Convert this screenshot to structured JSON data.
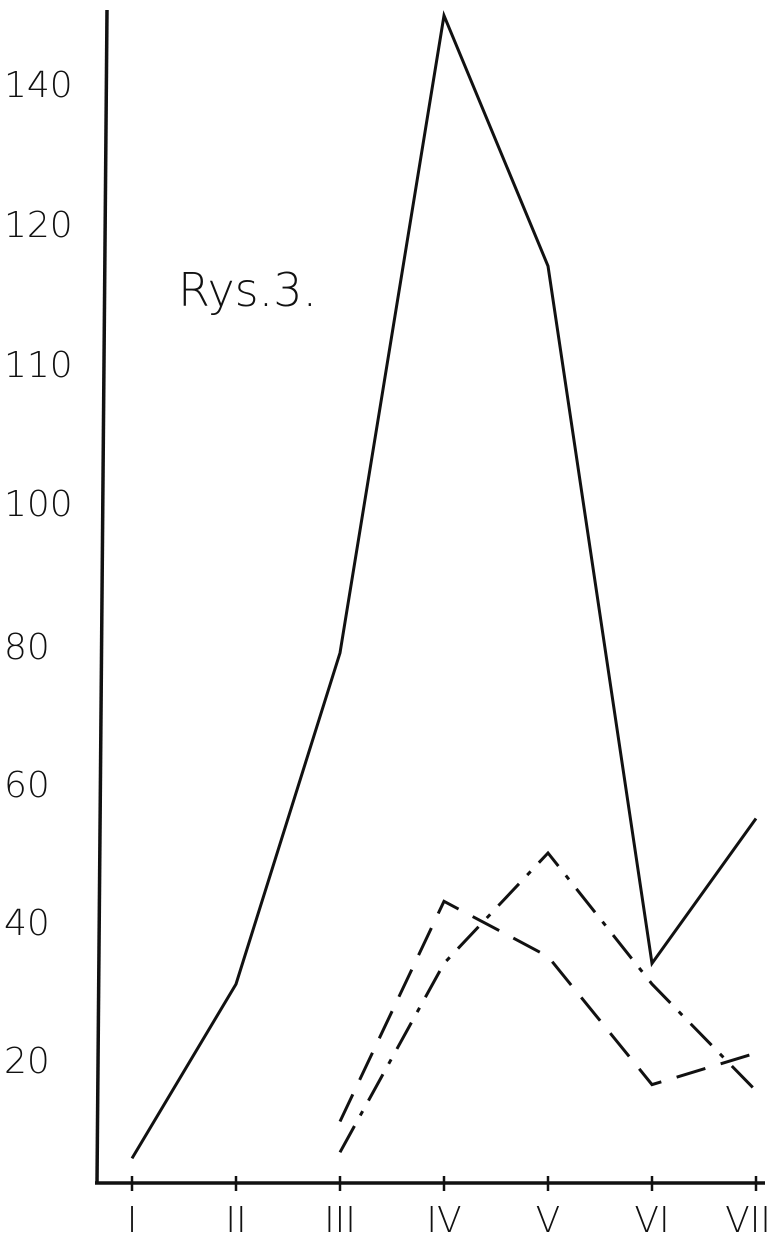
{
  "chart_data": {
    "type": "line",
    "title": "Rys.3.",
    "xlabel": "",
    "ylabel": "",
    "categories": [
      "I",
      "II",
      "III",
      "IV",
      "V",
      "VI",
      "VII"
    ],
    "y_ticks": [
      20,
      40,
      60,
      80,
      100,
      110,
      120,
      140
    ],
    "grid": false,
    "legend": "none",
    "series": [
      {
        "style": "solid",
        "color": "#111111",
        "values": [
          4,
          31,
          79,
          149,
          117,
          34,
          55
        ]
      },
      {
        "style": "dashed",
        "color": "#111111",
        "values": [
          null,
          null,
          10,
          43,
          35,
          16,
          21
        ]
      },
      {
        "style": "dash-dot",
        "color": "#111111",
        "values": [
          null,
          null,
          5,
          34,
          50,
          31,
          15
        ]
      }
    ]
  }
}
